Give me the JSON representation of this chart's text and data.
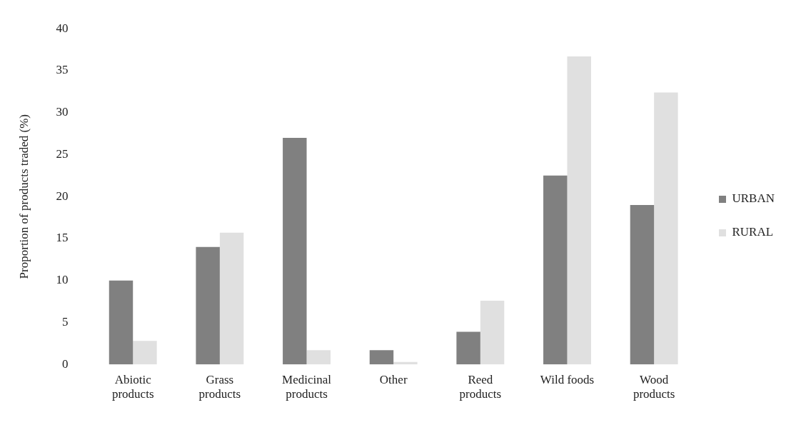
{
  "chart_data": {
    "type": "bar",
    "ylabel": "Proportion of products traded (%)",
    "categories": [
      "Abiotic\nproducts",
      "Grass\nproducts",
      "Medicinal\nproducts",
      "Other",
      "Reed\nproducts",
      "Wild foods",
      "Wood\nproducts"
    ],
    "series": [
      {
        "name": "URBAN",
        "color": "#808080",
        "values": [
          10,
          14,
          27,
          1.7,
          3.9,
          22.5,
          19
        ]
      },
      {
        "name": "RURAL",
        "color": "#e0e0e0",
        "values": [
          2.8,
          15.7,
          1.7,
          0.3,
          7.6,
          36.7,
          32.4
        ]
      }
    ],
    "ylim": [
      0,
      40
    ],
    "yticks": [
      0,
      5,
      10,
      15,
      20,
      25,
      30,
      35,
      40
    ],
    "grid": false,
    "legend": "right"
  }
}
